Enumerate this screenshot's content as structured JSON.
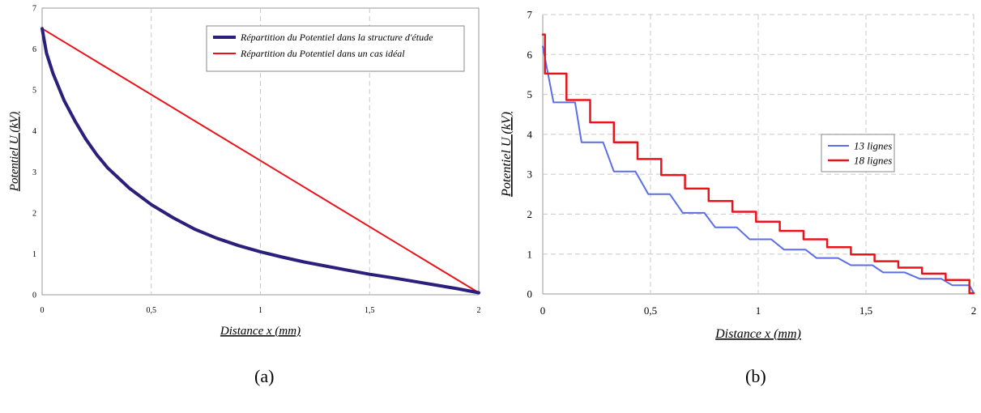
{
  "captions": {
    "a": "(a)",
    "b": "(b)"
  },
  "chart_data": [
    {
      "type": "line",
      "xlabel": "Distance x (mm)",
      "ylabel": "Potentiel U (kV)",
      "xlim": [
        0,
        2
      ],
      "ylim": [
        0,
        7
      ],
      "xticks": [
        0,
        0.5,
        1,
        1.5,
        2
      ],
      "xtick_labels": [
        "0",
        "0,5",
        "1",
        "1,5",
        "2"
      ],
      "yticks": [
        0,
        1,
        2,
        3,
        4,
        5,
        6,
        7
      ],
      "ytick_labels": [
        "0",
        "1",
        "2",
        "3",
        "4",
        "5",
        "6",
        "7"
      ],
      "grid": "vertical dashed",
      "legend": "top-right",
      "series": [
        {
          "name": "Répartition du Potentiel dans la structure d'étude",
          "color": "#2a1f7a",
          "x": [
            0,
            0.02,
            0.05,
            0.1,
            0.15,
            0.2,
            0.25,
            0.3,
            0.4,
            0.5,
            0.6,
            0.7,
            0.8,
            0.9,
            1.0,
            1.1,
            1.2,
            1.3,
            1.4,
            1.5,
            1.6,
            1.7,
            1.8,
            1.9,
            2.0
          ],
          "y": [
            6.5,
            5.9,
            5.4,
            4.75,
            4.25,
            3.8,
            3.42,
            3.1,
            2.6,
            2.2,
            1.88,
            1.6,
            1.38,
            1.2,
            1.05,
            0.92,
            0.8,
            0.7,
            0.6,
            0.5,
            0.42,
            0.33,
            0.24,
            0.15,
            0.05
          ]
        },
        {
          "name": "Répartition du Potentiel dans un cas idéal",
          "color": "#e8141c",
          "x": [
            0,
            2
          ],
          "y": [
            6.5,
            0.05
          ]
        }
      ]
    },
    {
      "type": "line",
      "xlabel": "Distance x (mm)",
      "ylabel": "Potentiel U (kV)",
      "xlim": [
        0,
        2
      ],
      "ylim": [
        0,
        7
      ],
      "xticks": [
        0,
        0.5,
        1,
        1.5,
        2
      ],
      "xtick_labels": [
        "0",
        "0,5",
        "1",
        "1,5",
        "2"
      ],
      "yticks": [
        0,
        1,
        2,
        3,
        4,
        5,
        6,
        7
      ],
      "ytick_labels": [
        "0",
        "1",
        "2",
        "3",
        "4",
        "5",
        "6",
        "7"
      ],
      "grid": "both dashed",
      "legend": "top-right",
      "series": [
        {
          "name": "13 lignes",
          "color": "#5b6ee6",
          "x": [
            0,
            0.05,
            0.15,
            0.18,
            0.28,
            0.33,
            0.43,
            0.49,
            0.59,
            0.65,
            0.75,
            0.8,
            0.9,
            0.96,
            1.06,
            1.12,
            1.22,
            1.27,
            1.37,
            1.43,
            1.53,
            1.58,
            1.68,
            1.75,
            1.85,
            1.9,
            1.98,
            2.0
          ],
          "y": [
            6.2,
            4.8,
            4.8,
            3.8,
            3.8,
            3.07,
            3.07,
            2.5,
            2.5,
            2.03,
            2.03,
            1.67,
            1.67,
            1.37,
            1.37,
            1.11,
            1.11,
            0.9,
            0.9,
            0.72,
            0.72,
            0.54,
            0.54,
            0.38,
            0.38,
            0.22,
            0.22,
            0.02
          ]
        },
        {
          "name": "18 lignes",
          "color": "#e8141c",
          "x": [
            0,
            0.01,
            0.01,
            0.11,
            0.11,
            0.22,
            0.22,
            0.33,
            0.33,
            0.44,
            0.44,
            0.55,
            0.55,
            0.66,
            0.66,
            0.77,
            0.77,
            0.88,
            0.88,
            0.99,
            0.99,
            1.1,
            1.1,
            1.21,
            1.21,
            1.32,
            1.32,
            1.43,
            1.43,
            1.54,
            1.54,
            1.65,
            1.65,
            1.76,
            1.76,
            1.87,
            1.87,
            1.98,
            1.98,
            2.0
          ],
          "y": [
            6.5,
            6.5,
            5.52,
            5.52,
            4.86,
            4.86,
            4.3,
            4.3,
            3.8,
            3.8,
            3.38,
            3.38,
            2.98,
            2.98,
            2.64,
            2.64,
            2.33,
            2.33,
            2.06,
            2.06,
            1.81,
            1.81,
            1.58,
            1.58,
            1.37,
            1.37,
            1.17,
            1.17,
            0.99,
            0.99,
            0.82,
            0.82,
            0.66,
            0.66,
            0.51,
            0.51,
            0.35,
            0.35,
            0.02,
            0.02
          ]
        }
      ]
    }
  ]
}
